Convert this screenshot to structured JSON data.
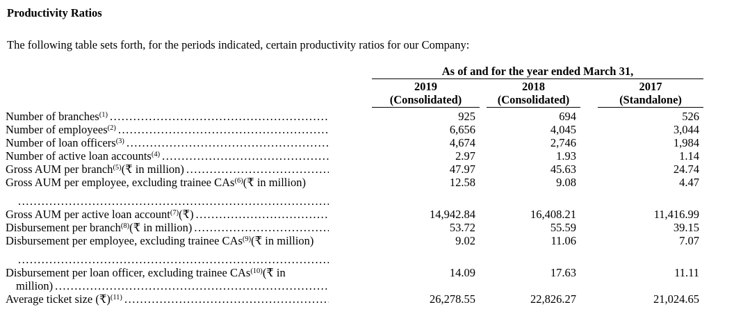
{
  "title": "Productivity Ratios",
  "intro": "The following table sets forth, for the periods indicated, certain productivity ratios for our Company:",
  "table": {
    "period_header": "As of and for the year ended March 31,",
    "columns": [
      {
        "year": "2019",
        "basis": "(Consolidated)"
      },
      {
        "year": "2018",
        "basis": "(Consolidated)"
      },
      {
        "year": "2017",
        "basis": "(Standalone)"
      }
    ],
    "rows": [
      {
        "pre": "Number of branches",
        "sup": "(1)",
        "post": "",
        "values": [
          "925",
          "694",
          "526"
        ]
      },
      {
        "pre": "Number of employees",
        "sup": "(2)",
        "post": "",
        "values": [
          "6,656",
          "4,045",
          "3,044"
        ]
      },
      {
        "pre": "Number of loan officers",
        "sup": "(3)",
        "post": "",
        "values": [
          "4,674",
          "2,746",
          "1,984"
        ]
      },
      {
        "pre": "Number of active loan accounts",
        "sup": "(4)",
        "post": "",
        "values": [
          "2.97",
          "1.93",
          "1.14"
        ]
      },
      {
        "pre": "Gross AUM per branch",
        "sup": "(5)",
        "post": " (₹ in million)",
        "values": [
          "47.97",
          "45.63",
          "24.74"
        ]
      },
      {
        "pre": "Gross AUM per employee, excluding trainee CAs",
        "sup": "(6)",
        "post": " (₹ in million)",
        "values": [
          "12.58",
          "9.08",
          "4.47"
        ],
        "cont": "",
        "cont_gap": true
      },
      {
        "pre": "Gross AUM per active loan account",
        "sup": "(7)",
        "post": " (₹)",
        "values": [
          "14,942.84",
          "16,408.21",
          "11,416.99"
        ]
      },
      {
        "pre": "Disbursement per branch",
        "sup": "(8)",
        "post": " (₹ in million)",
        "values": [
          "53.72",
          "55.59",
          "39.15"
        ]
      },
      {
        "pre": "Disbursement per employee, excluding trainee CAs",
        "sup": "(9)",
        "post": " (₹ in million)",
        "values": [
          "9.02",
          "11.06",
          "7.07"
        ],
        "cont": "",
        "cont_gap": true
      },
      {
        "pre": "Disbursement per loan officer, excluding trainee CAs",
        "sup": "(10)",
        "post": " (₹ in",
        "values": [
          "14.09",
          "17.63",
          "11.11"
        ],
        "cont": "million)",
        "cont_gap": false
      },
      {
        "pre": "Average ticket size (₹)",
        "sup": "(11)",
        "post": " ",
        "values": [
          "26,278.55",
          "22,826.27",
          "21,024.65"
        ]
      }
    ]
  }
}
